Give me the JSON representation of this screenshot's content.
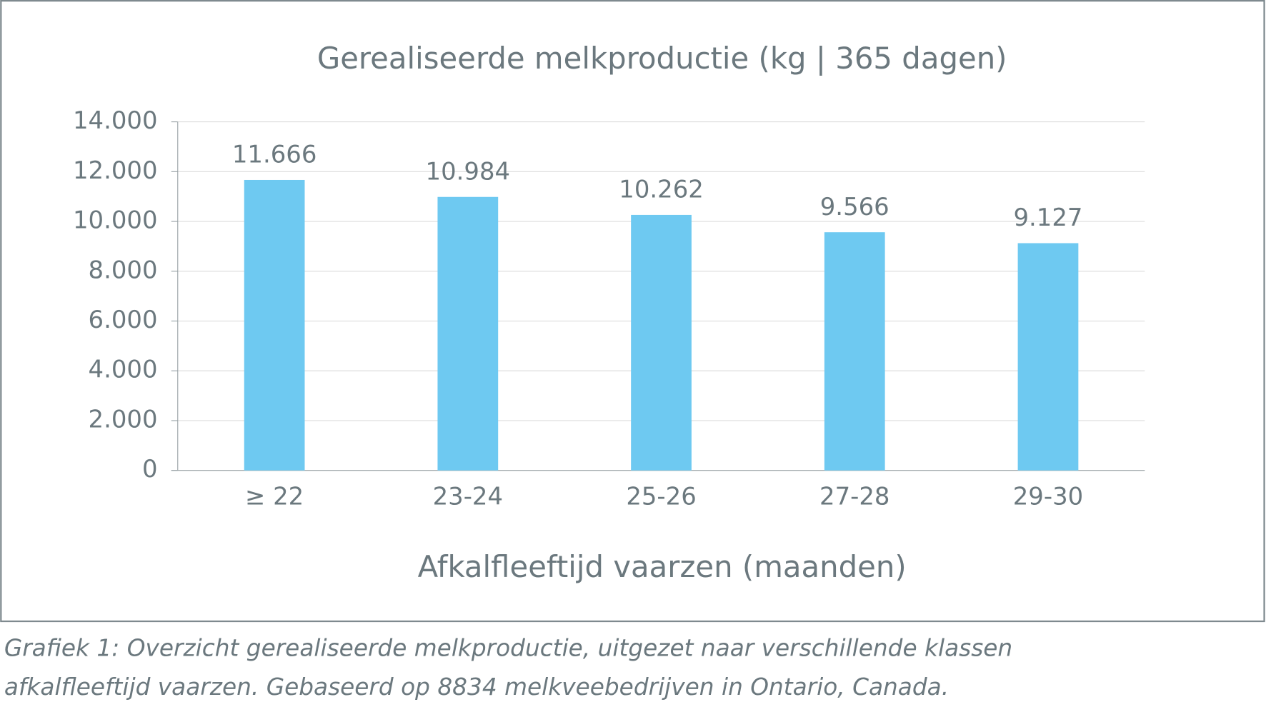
{
  "chart_data": {
    "type": "bar",
    "title": "Gerealiseerde melkproductie (kg | 365 dagen)",
    "x_label": "Afkalfleeftijd vaarzen (maanden)",
    "categories": [
      "≥ 22",
      "23-24",
      "25-26",
      "27-28",
      "29-30"
    ],
    "values": [
      11666,
      10984,
      10262,
      9566,
      9127
    ],
    "value_labels": [
      "11.666",
      "10.984",
      "10.262",
      "9.566",
      "9.127"
    ],
    "color": "#6ec9f1",
    "ylim": [
      0,
      14000
    ],
    "yticks": [
      0,
      {
        "value": 2000,
        "label": "2.000"
      },
      {
        "value": 4000,
        "label": "4.000"
      },
      {
        "value": 6000,
        "label": "6.000"
      },
      {
        "value": 8000,
        "label": "8.000"
      },
      {
        "value": 10000,
        "label": "10.000"
      },
      {
        "value": 12000,
        "label": "12.000"
      },
      {
        "value": 14000,
        "label": "14.000"
      }
    ],
    "grid": true
  },
  "caption": [
    "Grafiek 1: Overzicht gerealiseerde melkproductie, uitgezet naar verschillende klassen",
    "afkalfleeftijd vaarzen. Gebaseerd op 8834 melkveebedrijven in Ontario, Canada."
  ]
}
